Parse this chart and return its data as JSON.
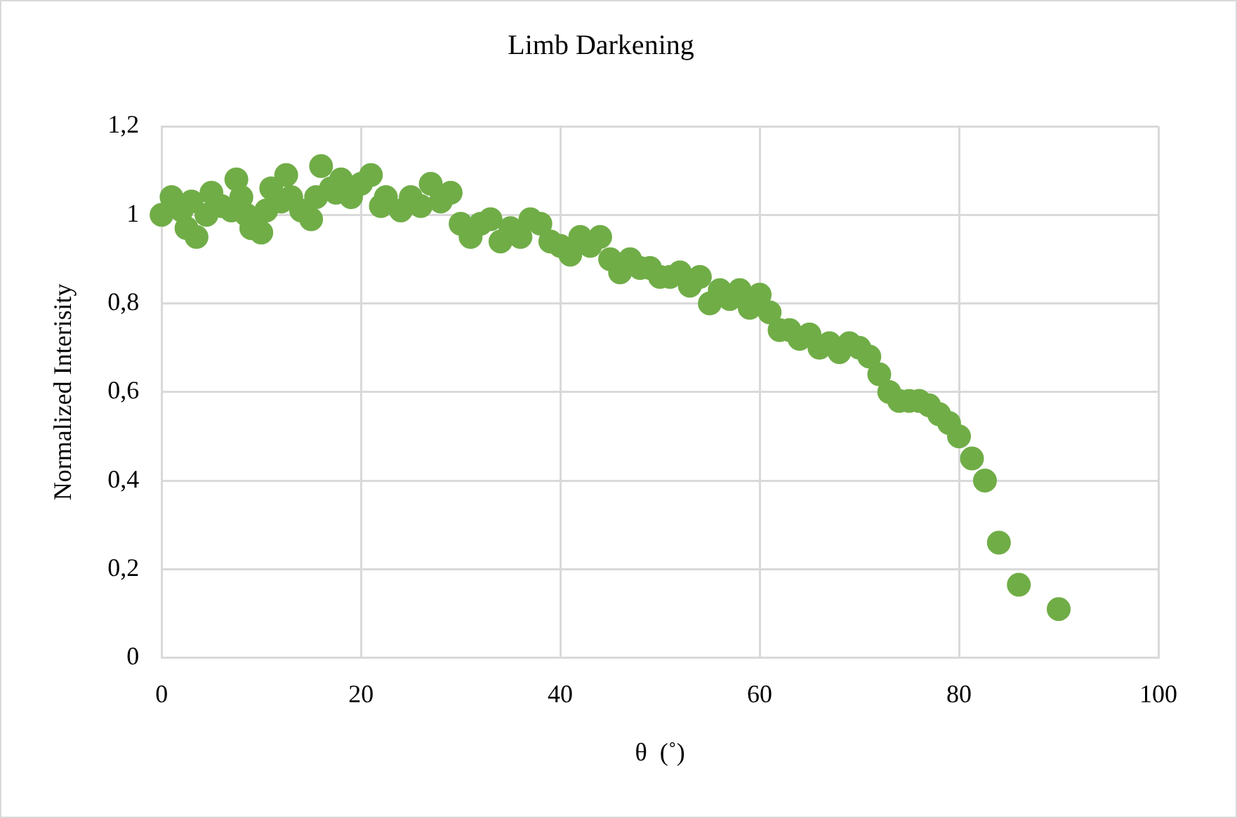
{
  "chart_data": {
    "type": "scatter",
    "title": "Limb Darkening",
    "xlabel": "θ  (˚)",
    "ylabel": "Normalized Interisity",
    "xlim": [
      0,
      100
    ],
    "xticks": [
      0,
      20,
      40,
      60,
      80,
      100
    ],
    "ylim": [
      0,
      1.2
    ],
    "yticks": [
      0,
      {
        "value": 0.2,
        "label": "0,2"
      },
      {
        "value": 0.4,
        "label": "0,4"
      },
      {
        "value": 0.6,
        "label": "0,6"
      },
      {
        "value": 0.8,
        "label": "0,8"
      },
      1,
      {
        "value": 1.2,
        "label": "1,2"
      }
    ],
    "grid": true,
    "legend": false,
    "marker": "circle",
    "series": [
      {
        "color": "#70ad47",
        "x": [
          0,
          1,
          2,
          2.5,
          3,
          3.5,
          4.5,
          5,
          6,
          7,
          7.5,
          8,
          8.5,
          9,
          10,
          10.5,
          11,
          12,
          12.5,
          13,
          14,
          15,
          15.5,
          16,
          17,
          17.5,
          18,
          19,
          20,
          21,
          22,
          22.5,
          24,
          25,
          26,
          27,
          28,
          29,
          30,
          31,
          32,
          33,
          34,
          35,
          36,
          37,
          38,
          39,
          40,
          41,
          42,
          43,
          44,
          45,
          46,
          47,
          48,
          49,
          50,
          51,
          52,
          53,
          54,
          55,
          56,
          57,
          58,
          59,
          60,
          61,
          62,
          63,
          64,
          65,
          66,
          67,
          68,
          69,
          70,
          71,
          72,
          73,
          74,
          75,
          76,
          77,
          78,
          79,
          80,
          81.3,
          82.6,
          84,
          86,
          90
        ],
        "values": [
          1,
          1.04,
          1.01,
          0.97,
          1.03,
          0.95,
          1,
          1.05,
          1.02,
          1.01,
          1.08,
          1.04,
          1,
          0.97,
          0.96,
          1.01,
          1.06,
          1.03,
          1.09,
          1.04,
          1.01,
          0.99,
          1.04,
          1.11,
          1.06,
          1.05,
          1.08,
          1.04,
          1.07,
          1.09,
          1.02,
          1.04,
          1.01,
          1.04,
          1.02,
          1.07,
          1.03,
          1.05,
          0.98,
          0.95,
          0.98,
          0.99,
          0.94,
          0.97,
          0.95,
          0.99,
          0.98,
          0.94,
          0.93,
          0.91,
          0.95,
          0.93,
          0.95,
          0.9,
          0.87,
          0.9,
          0.88,
          0.88,
          0.86,
          0.86,
          0.87,
          0.84,
          0.86,
          0.8,
          0.83,
          0.81,
          0.83,
          0.79,
          0.82,
          0.78,
          0.74,
          0.74,
          0.72,
          0.73,
          0.7,
          0.71,
          0.69,
          0.71,
          0.7,
          0.68,
          0.64,
          0.6,
          0.58,
          0.58,
          0.58,
          0.57,
          0.55,
          0.53,
          0.5,
          0.45,
          0.4,
          0.26,
          0.165,
          0.11
        ]
      }
    ]
  }
}
